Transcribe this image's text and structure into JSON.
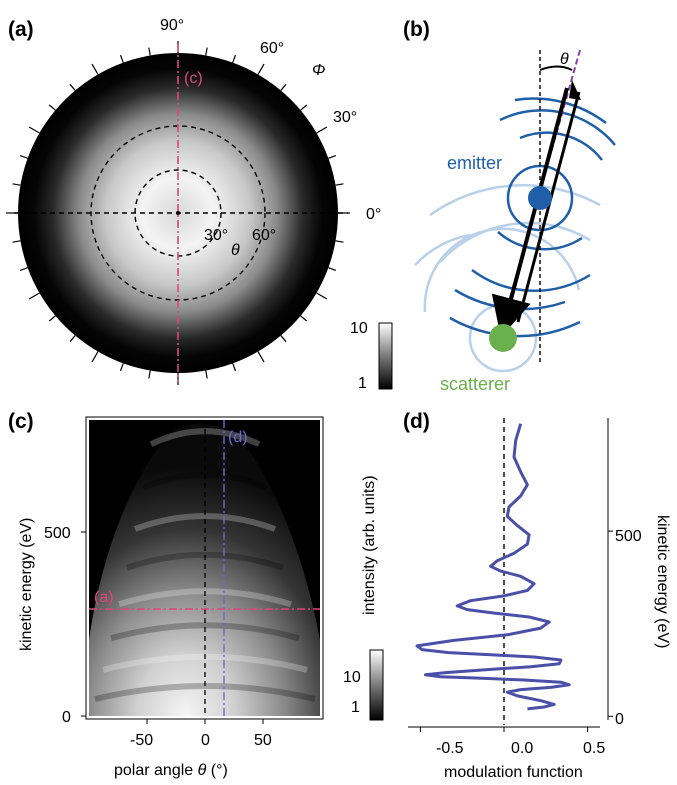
{
  "panel_labels": [
    "(a)",
    "(b)",
    "(c)",
    "(d)"
  ],
  "panel_a": {
    "phi_labels": [
      "90°",
      "60°",
      "30°",
      "0°"
    ],
    "phi_symbol": "Φ",
    "theta_labels": [
      "30°",
      "60°"
    ],
    "theta_symbol": "θ",
    "cut_label": "(c)",
    "cut_color": "#e0457b",
    "colorbar_ticks": [
      "10",
      "1"
    ]
  },
  "panel_b": {
    "theta_symbol": "θ",
    "emitter_label": "emitter",
    "scatterer_label": "scatterer",
    "emitter_color": "#1f5fa8",
    "wave_light_color": "#b8d0ea",
    "scatterer_color": "#6ab04c",
    "axis_color": "#8b3fa8"
  },
  "panel_c": {
    "ylabel": "kinetic energy (eV)",
    "xlabel_prefix": "polar angle ",
    "xlabel_symbol": "θ",
    "xlabel_suffix": " (°)",
    "xticks": [
      "-50",
      "0",
      "50"
    ],
    "yticks": [
      "0",
      "500"
    ],
    "cut_label_a": "(a)",
    "cut_label_d": "(d)",
    "cut_a_color": "#e0457b",
    "cut_d_color": "#6a6ad0",
    "colorbar_title": "intensity (arb. units)",
    "colorbar_ticks": [
      "10",
      "1"
    ]
  },
  "chart_data": {
    "type": "line",
    "panel": "(d)",
    "xlabel": "modulation function",
    "ylabel": "kinetic energy (eV)",
    "xlim": [
      -0.55,
      0.55
    ],
    "ylim": [
      -10,
      800
    ],
    "xticks": [
      "-0.5",
      "0.0",
      "0.5"
    ],
    "yticks": [
      "0",
      "500"
    ],
    "line_color": "#4a4fa8",
    "series": [
      {
        "x": [
          0.14,
          0.24,
          0.3,
          0.22,
          0.08,
          0.02,
          0.1,
          0.28,
          0.39,
          0.34,
          0.12,
          -0.15,
          -0.38,
          -0.47,
          -0.35,
          -0.1,
          0.16,
          0.33,
          0.34,
          0.18,
          -0.08,
          -0.33,
          -0.49,
          -0.52,
          -0.3,
          0.02,
          0.22,
          0.27,
          0.15,
          -0.05,
          -0.22,
          -0.28,
          -0.2,
          0.0,
          0.14,
          0.18,
          0.1,
          -0.02,
          -0.08,
          -0.04,
          0.06,
          0.14,
          0.15,
          0.08,
          0.02,
          0.03,
          0.1,
          0.14,
          0.1,
          0.06,
          0.07,
          0.1
        ],
        "y": [
          20,
          25,
          32,
          42,
          55,
          65,
          72,
          78,
          85,
          92,
          98,
          103,
          107,
          112,
          118,
          126,
          134,
          142,
          152,
          160,
          166,
          172,
          180,
          190,
          205,
          220,
          238,
          255,
          268,
          278,
          288,
          298,
          312,
          325,
          340,
          358,
          378,
          392,
          405,
          420,
          440,
          465,
          490,
          515,
          540,
          565,
          595,
          625,
          660,
          700,
          745,
          790
        ]
      }
    ]
  }
}
